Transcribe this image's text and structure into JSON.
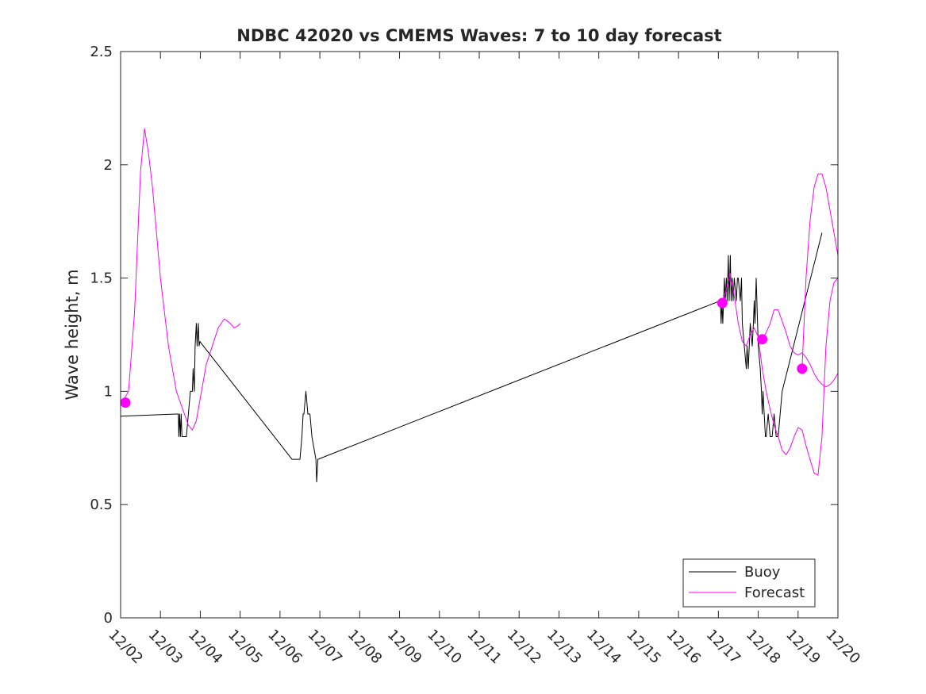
{
  "chart_data": {
    "type": "line",
    "title": "NDBC 42020 vs CMEMS Waves: 7 to 10 day forecast",
    "xlabel": "",
    "ylabel": "Wave height, m",
    "xlim": [
      2,
      20
    ],
    "ylim": [
      0,
      2.5
    ],
    "yticks": [
      0,
      0.5,
      1,
      1.5,
      2,
      2.5
    ],
    "ytick_labels": [
      "0",
      "0.5",
      "1",
      "1.5",
      "2",
      "2.5"
    ],
    "xticks": [
      2,
      3,
      4,
      5,
      6,
      7,
      8,
      9,
      10,
      11,
      12,
      13,
      14,
      15,
      16,
      17,
      18,
      19,
      20
    ],
    "xtick_labels": [
      "12/02",
      "12/03",
      "12/04",
      "12/05",
      "12/06",
      "12/07",
      "12/08",
      "12/09",
      "12/10",
      "12/11",
      "12/12",
      "12/13",
      "12/14",
      "12/15",
      "12/16",
      "12/17",
      "12/18",
      "12/19",
      "12/20"
    ],
    "grid": false,
    "legend_position": "bottom-right",
    "series": [
      {
        "name": "Buoy",
        "color": "#000000",
        "x": [
          2.0,
          3.4,
          3.45,
          3.46,
          3.48,
          3.5,
          3.52,
          3.54,
          3.65,
          3.7,
          3.75,
          3.8,
          3.82,
          3.85,
          3.87,
          3.9,
          3.92,
          3.95,
          3.97,
          3.99,
          6.3,
          6.45,
          6.5,
          6.55,
          6.58,
          6.6,
          6.65,
          6.7,
          6.75,
          6.8,
          6.9,
          6.92,
          6.95,
          17.05,
          17.07,
          17.09,
          17.11,
          17.13,
          17.15,
          17.17,
          17.2,
          17.22,
          17.25,
          17.27,
          17.3,
          17.32,
          17.35,
          17.37,
          17.4,
          17.45,
          17.48,
          17.5,
          17.55,
          17.58,
          17.6,
          17.65,
          17.7,
          17.72,
          17.75,
          17.8,
          17.85,
          17.88,
          17.9,
          17.92,
          17.95,
          18.0,
          18.05,
          18.08,
          18.1,
          18.12,
          18.15,
          18.18,
          18.2,
          18.25,
          18.3,
          18.35,
          18.4,
          18.45,
          18.5,
          18.55,
          18.6,
          19.6
        ],
        "y": [
          0.89,
          0.9,
          0.9,
          0.8,
          0.9,
          0.8,
          0.9,
          0.8,
          0.8,
          0.9,
          1.0,
          1.0,
          1.1,
          1.0,
          1.2,
          1.3,
          1.2,
          1.3,
          1.2,
          1.22,
          0.7,
          0.7,
          0.7,
          0.8,
          0.9,
          0.9,
          1.0,
          0.9,
          0.9,
          0.8,
          0.7,
          0.6,
          0.7,
          1.4,
          1.3,
          1.4,
          1.3,
          1.4,
          1.5,
          1.4,
          1.5,
          1.4,
          1.6,
          1.4,
          1.6,
          1.4,
          1.5,
          1.4,
          1.5,
          1.4,
          1.5,
          1.5,
          1.4,
          1.5,
          1.3,
          1.2,
          1.1,
          1.2,
          1.1,
          1.3,
          1.2,
          1.3,
          1.4,
          1.3,
          1.5,
          1.2,
          1.1,
          1.0,
          0.9,
          1.0,
          0.9,
          0.8,
          0.8,
          0.9,
          0.8,
          0.8,
          0.9,
          0.8,
          0.8,
          0.9,
          1.0,
          1.7
        ]
      },
      {
        "name": "Forecast",
        "color": "#ff00ff",
        "segments": [
          {
            "x": [
              2.0,
              2.1,
              2.2,
              2.35,
              2.5,
              2.6,
              2.7,
              2.8,
              2.9,
              3.0,
              3.2,
              3.4,
              3.6,
              3.7,
              3.8,
              3.9,
              4.0,
              4.15,
              4.3,
              4.45,
              4.6,
              4.75,
              4.85,
              4.95,
              5.0
            ],
            "y": [
              0.95,
              0.97,
              1.0,
              1.35,
              1.97,
              2.16,
              2.05,
              1.9,
              1.7,
              1.5,
              1.2,
              1.0,
              0.9,
              0.85,
              0.83,
              0.87,
              0.97,
              1.12,
              1.2,
              1.28,
              1.32,
              1.3,
              1.28,
              1.29,
              1.3
            ]
          },
          {
            "x": [
              17.1,
              17.2,
              17.3,
              17.4,
              17.5,
              17.6,
              17.7,
              17.8,
              17.9,
              18.0,
              18.1,
              18.2,
              18.3,
              18.4,
              18.5,
              18.6,
              18.7,
              18.8,
              18.9,
              19.0,
              19.1,
              19.2,
              19.3,
              19.4,
              19.5,
              19.6,
              19.7,
              19.8,
              19.9,
              20.0
            ],
            "y": [
              1.39,
              1.45,
              1.52,
              1.42,
              1.3,
              1.22,
              1.2,
              1.25,
              1.28,
              1.24,
              1.1,
              1.0,
              0.92,
              0.85,
              0.8,
              0.74,
              0.72,
              0.75,
              0.8,
              0.84,
              0.83,
              0.76,
              0.7,
              0.64,
              0.63,
              0.8,
              1.2,
              1.4,
              1.48,
              1.5
            ]
          },
          {
            "x": [
              18.1,
              18.2,
              18.3,
              18.4,
              18.5,
              18.6,
              18.7,
              18.8,
              18.9,
              19.0,
              19.1,
              19.2,
              19.3,
              19.4,
              19.5,
              19.6,
              19.7,
              19.8,
              19.9,
              20.0
            ],
            "y": [
              1.23,
              1.26,
              1.3,
              1.36,
              1.36,
              1.31,
              1.26,
              1.2,
              1.17,
              1.16,
              1.17,
              1.15,
              1.12,
              1.08,
              1.05,
              1.03,
              1.02,
              1.03,
              1.05,
              1.08
            ]
          },
          {
            "x": [
              19.1,
              19.2,
              19.3,
              19.4,
              19.5,
              19.6,
              19.7,
              19.8,
              19.9,
              20.0
            ],
            "y": [
              1.1,
              1.5,
              1.75,
              1.9,
              1.96,
              1.96,
              1.9,
              1.8,
              1.7,
              1.6
            ]
          }
        ],
        "markers": [
          {
            "x": 2.12,
            "y": 0.95
          },
          {
            "x": 17.1,
            "y": 1.39
          },
          {
            "x": 18.1,
            "y": 1.23
          },
          {
            "x": 19.1,
            "y": 1.1
          }
        ]
      }
    ]
  }
}
